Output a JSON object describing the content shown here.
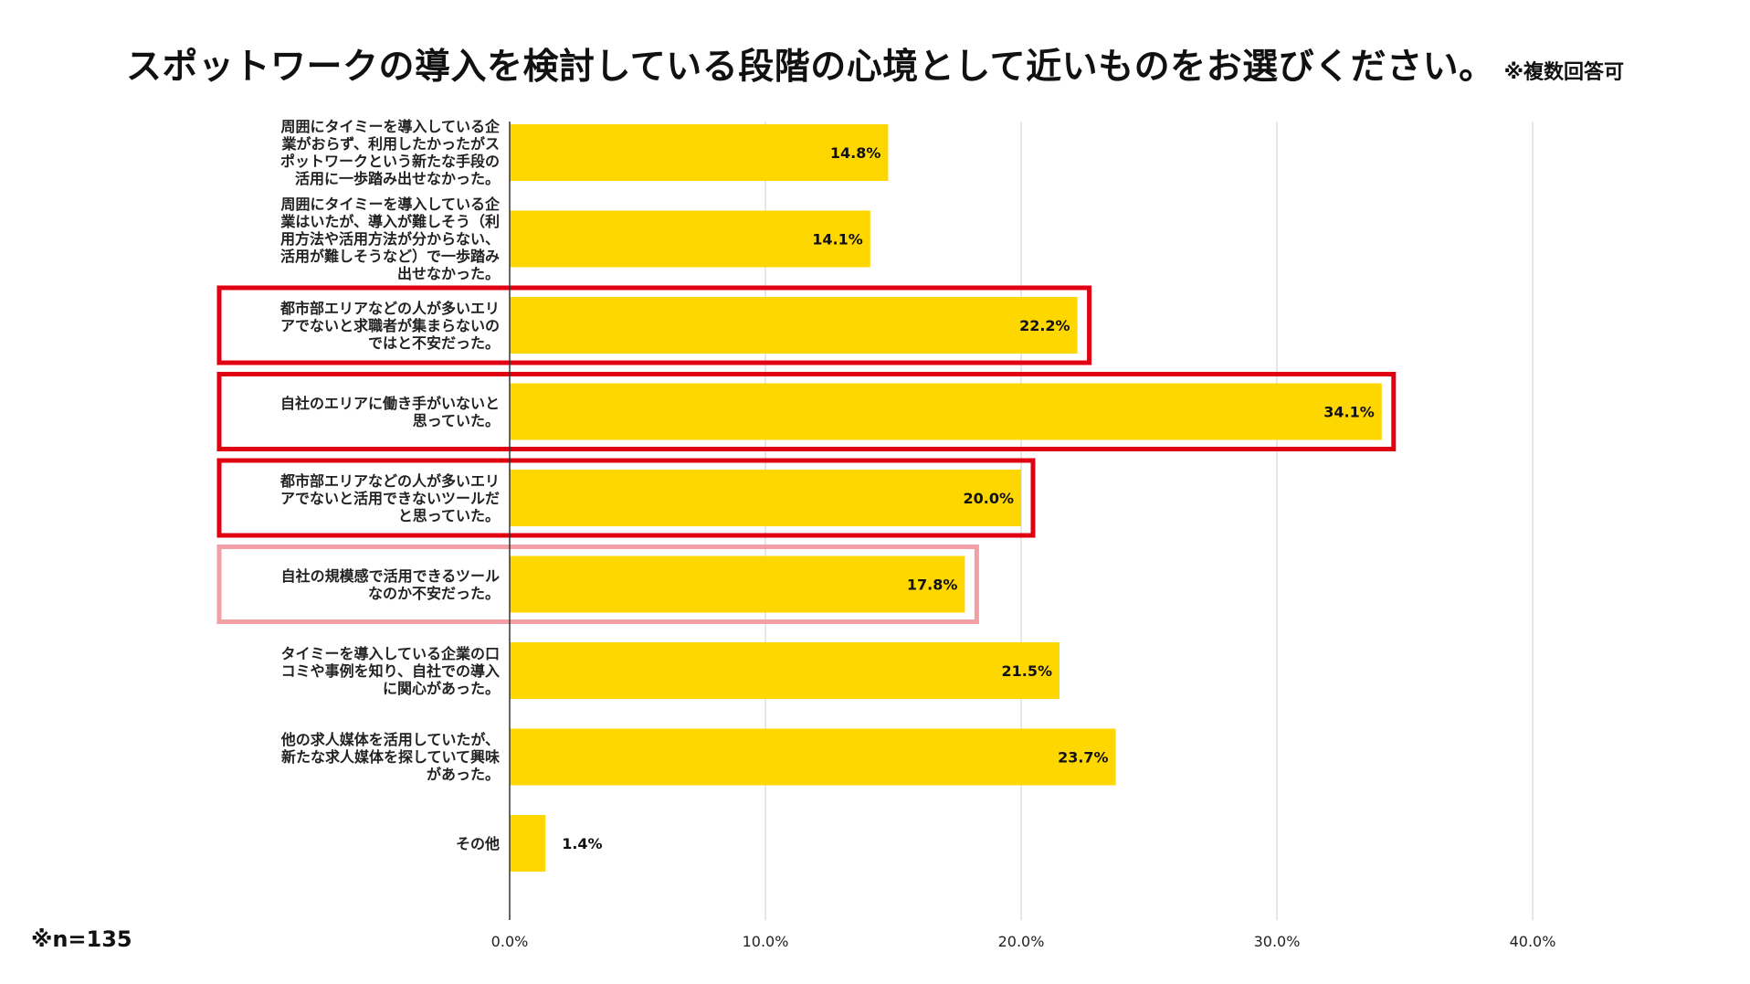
{
  "chart_data": {
    "type": "bar",
    "orientation": "horizontal",
    "title": "スポットワークの導入を検討している段階の心境として近いものをお選びください。",
    "title_note": "※複数回答可",
    "sample_note": "※n=135",
    "categories": [
      "周囲にタイミーを導入している企\n業がおらず、利用したかったがス\nポットワークという新たな手段の\n活用に一歩踏み出せなかった。",
      "周囲にタイミーを導入している企\n業はいたが、導入が難しそう（利\n用方法や活用方法が分からない、\n活用が難しそうなど）で一歩踏み\n出せなかった。",
      "都市部エリアなどの人が多いエリ\nアでないと求職者が集まらないの\nではと不安だった。",
      "自社のエリアに働き手がいないと\n思っていた。",
      "都市部エリアなどの人が多いエリ\nアでないと活用できないツールだ\nと思っていた。",
      "自社の規模感で活用できるツール\nなのか不安だった。",
      "タイミーを導入している企業の口\nコミや事例を知り、自社での導入\nに関心があった。",
      "他の求人媒体を活用していたが、\n新たな求人媒体を探していて興味\nがあった。",
      "その他"
    ],
    "values": [
      14.8,
      14.1,
      22.2,
      34.1,
      20.0,
      17.8,
      21.5,
      23.7,
      1.4
    ],
    "value_labels": [
      "14.8%",
      "14.1%",
      "22.2%",
      "34.1%",
      "20.0%",
      "17.8%",
      "21.5%",
      "23.7%",
      "1.4%"
    ],
    "value_label_position": [
      "inside",
      "inside",
      "inside",
      "inside",
      "inside",
      "inside",
      "inside",
      "inside",
      "outside"
    ],
    "highlight": [
      "none",
      "none",
      "red",
      "red",
      "red",
      "pink",
      "none",
      "none",
      "none"
    ],
    "xlim": [
      0,
      40
    ],
    "x_ticks": [
      0,
      10,
      20,
      30,
      40
    ],
    "x_tick_labels": [
      "0.0%",
      "10.0%",
      "20.0%",
      "30.0%",
      "40.0%"
    ],
    "grid": true,
    "legend": "none",
    "xlabel": "",
    "ylabel": ""
  },
  "colors": {
    "bar": "#FFD700",
    "grid": "#CCCCCC",
    "axis": "#333333",
    "highlight_red": "#E00012",
    "highlight_pink": "#F2A0A6"
  }
}
